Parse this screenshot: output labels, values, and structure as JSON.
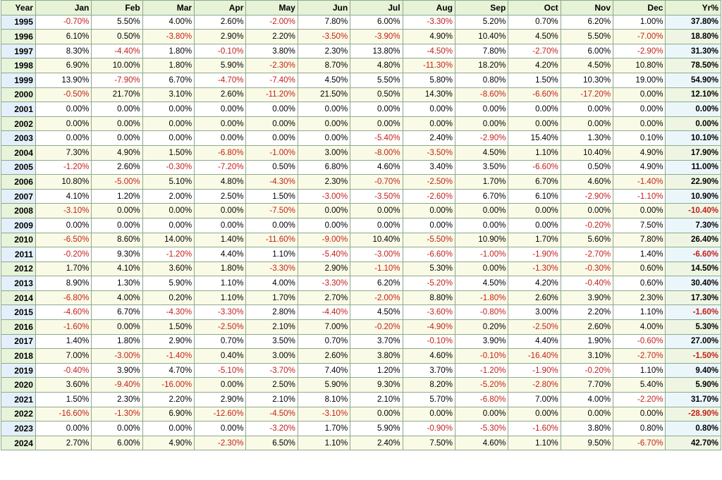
{
  "chart_data": {
    "type": "table",
    "columns": [
      "Year",
      "Jan",
      "Feb",
      "Mar",
      "Apr",
      "May",
      "Jun",
      "Jul",
      "Aug",
      "Sep",
      "Oct",
      "Nov",
      "Dec",
      "Yr%"
    ],
    "rows": [
      [
        "1995",
        "-0.70%",
        "5.50%",
        "4.00%",
        "2.60%",
        "-2.00%",
        "7.80%",
        "6.00%",
        "-3.30%",
        "5.20%",
        "0.70%",
        "6.20%",
        "1.00%",
        "37.80%"
      ],
      [
        "1996",
        "6.10%",
        "0.50%",
        "-3.80%",
        "2.90%",
        "2.20%",
        "-3.50%",
        "-3.90%",
        "4.90%",
        "10.40%",
        "4.50%",
        "5.50%",
        "-7.00%",
        "18.80%"
      ],
      [
        "1997",
        "8.30%",
        "-4.40%",
        "1.80%",
        "-0.10%",
        "3.80%",
        "2.30%",
        "13.80%",
        "-4.50%",
        "7.80%",
        "-2.70%",
        "6.00%",
        "-2.90%",
        "31.30%"
      ],
      [
        "1998",
        "6.90%",
        "10.00%",
        "1.80%",
        "5.90%",
        "-2.30%",
        "8.70%",
        "4.80%",
        "-11.30%",
        "18.20%",
        "4.20%",
        "4.50%",
        "10.80%",
        "78.50%"
      ],
      [
        "1999",
        "13.90%",
        "-7.90%",
        "6.70%",
        "-4.70%",
        "-7.40%",
        "4.50%",
        "5.50%",
        "5.80%",
        "0.80%",
        "1.50%",
        "10.30%",
        "19.00%",
        "54.90%"
      ],
      [
        "2000",
        "-0.50%",
        "21.70%",
        "3.10%",
        "2.60%",
        "-11.20%",
        "21.50%",
        "0.50%",
        "14.30%",
        "-8.60%",
        "-6.60%",
        "-17.20%",
        "0.00%",
        "12.10%"
      ],
      [
        "2001",
        "0.00%",
        "0.00%",
        "0.00%",
        "0.00%",
        "0.00%",
        "0.00%",
        "0.00%",
        "0.00%",
        "0.00%",
        "0.00%",
        "0.00%",
        "0.00%",
        "0.00%"
      ],
      [
        "2002",
        "0.00%",
        "0.00%",
        "0.00%",
        "0.00%",
        "0.00%",
        "0.00%",
        "0.00%",
        "0.00%",
        "0.00%",
        "0.00%",
        "0.00%",
        "0.00%",
        "0.00%"
      ],
      [
        "2003",
        "0.00%",
        "0.00%",
        "0.00%",
        "0.00%",
        "0.00%",
        "0.00%",
        "-5.40%",
        "2.40%",
        "-2.90%",
        "15.40%",
        "1.30%",
        "0.10%",
        "10.10%"
      ],
      [
        "2004",
        "7.30%",
        "4.90%",
        "1.50%",
        "-6.80%",
        "-1.00%",
        "3.00%",
        "-8.00%",
        "-3.50%",
        "4.50%",
        "1.10%",
        "10.40%",
        "4.90%",
        "17.90%"
      ],
      [
        "2005",
        "-1.20%",
        "2.60%",
        "-0.30%",
        "-7.20%",
        "0.50%",
        "6.80%",
        "4.60%",
        "3.40%",
        "3.50%",
        "-6.60%",
        "0.50%",
        "4.90%",
        "11.00%"
      ],
      [
        "2006",
        "10.80%",
        "-5.00%",
        "5.10%",
        "4.80%",
        "-4.30%",
        "2.30%",
        "-0.70%",
        "-2.50%",
        "1.70%",
        "6.70%",
        "4.60%",
        "-1.40%",
        "22.90%"
      ],
      [
        "2007",
        "4.10%",
        "1.20%",
        "2.00%",
        "2.50%",
        "1.50%",
        "-3.00%",
        "-3.50%",
        "-2.60%",
        "6.70%",
        "6.10%",
        "-2.90%",
        "-1.10%",
        "10.90%"
      ],
      [
        "2008",
        "-3.10%",
        "0.00%",
        "0.00%",
        "0.00%",
        "-7.50%",
        "0.00%",
        "0.00%",
        "0.00%",
        "0.00%",
        "0.00%",
        "0.00%",
        "0.00%",
        "-10.40%"
      ],
      [
        "2009",
        "0.00%",
        "0.00%",
        "0.00%",
        "0.00%",
        "0.00%",
        "0.00%",
        "0.00%",
        "0.00%",
        "0.00%",
        "0.00%",
        "-0.20%",
        "7.50%",
        "7.30%"
      ],
      [
        "2010",
        "-6.50%",
        "8.60%",
        "14.00%",
        "1.40%",
        "-11.60%",
        "-9.00%",
        "10.40%",
        "-5.50%",
        "10.90%",
        "1.70%",
        "5.60%",
        "7.80%",
        "26.40%"
      ],
      [
        "2011",
        "-0.20%",
        "9.30%",
        "-1.20%",
        "4.40%",
        "1.10%",
        "-5.40%",
        "-3.00%",
        "-6.60%",
        "-1.00%",
        "-1.90%",
        "-2.70%",
        "1.40%",
        "-6.60%"
      ],
      [
        "2012",
        "1.70%",
        "4.10%",
        "3.60%",
        "1.80%",
        "-3.30%",
        "2.90%",
        "-1.10%",
        "5.30%",
        "0.00%",
        "-1.30%",
        "-0.30%",
        "0.60%",
        "14.50%"
      ],
      [
        "2013",
        "8.90%",
        "1.30%",
        "5.90%",
        "1.10%",
        "4.00%",
        "-3.30%",
        "6.20%",
        "-5.20%",
        "4.50%",
        "4.20%",
        "-0.40%",
        "0.60%",
        "30.40%"
      ],
      [
        "2014",
        "-6.80%",
        "4.00%",
        "0.20%",
        "1.10%",
        "1.70%",
        "2.70%",
        "-2.00%",
        "8.80%",
        "-1.80%",
        "2.60%",
        "3.90%",
        "2.30%",
        "17.30%"
      ],
      [
        "2015",
        "-4.60%",
        "6.70%",
        "-4.30%",
        "-3.30%",
        "2.80%",
        "-4.40%",
        "4.50%",
        "-3.60%",
        "-0.80%",
        "3.00%",
        "2.20%",
        "1.10%",
        "-1.60%"
      ],
      [
        "2016",
        "-1.60%",
        "0.00%",
        "1.50%",
        "-2.50%",
        "2.10%",
        "7.00%",
        "-0.20%",
        "-4.90%",
        "0.20%",
        "-2.50%",
        "2.60%",
        "4.00%",
        "5.30%"
      ],
      [
        "2017",
        "1.40%",
        "1.80%",
        "2.90%",
        "0.70%",
        "3.50%",
        "0.70%",
        "3.70%",
        "-0.10%",
        "3.90%",
        "4.40%",
        "1.90%",
        "-0.60%",
        "27.00%"
      ],
      [
        "2018",
        "7.00%",
        "-3.00%",
        "-1.40%",
        "0.40%",
        "3.00%",
        "2.60%",
        "3.80%",
        "4.60%",
        "-0.10%",
        "-16.40%",
        "3.10%",
        "-2.70%",
        "-1.50%"
      ],
      [
        "2019",
        "-0.40%",
        "3.90%",
        "4.70%",
        "-5.10%",
        "-3.70%",
        "7.40%",
        "1.20%",
        "3.70%",
        "-1.20%",
        "-1.90%",
        "-0.20%",
        "1.10%",
        "9.40%"
      ],
      [
        "2020",
        "3.60%",
        "-9.40%",
        "-16.00%",
        "0.00%",
        "2.50%",
        "5.90%",
        "9.30%",
        "8.20%",
        "-5.20%",
        "-2.80%",
        "7.70%",
        "5.40%",
        "5.90%"
      ],
      [
        "2021",
        "1.50%",
        "2.30%",
        "2.20%",
        "2.90%",
        "2.10%",
        "8.10%",
        "2.10%",
        "5.70%",
        "-6.80%",
        "7.00%",
        "4.00%",
        "-2.20%",
        "31.70%"
      ],
      [
        "2022",
        "-16.60%",
        "-1.30%",
        "6.90%",
        "-12.60%",
        "-4.50%",
        "-3.10%",
        "0.00%",
        "0.00%",
        "0.00%",
        "0.00%",
        "0.00%",
        "0.00%",
        "-28.90%"
      ],
      [
        "2023",
        "0.00%",
        "0.00%",
        "0.00%",
        "0.00%",
        "-3.20%",
        "1.70%",
        "5.90%",
        "-0.90%",
        "-5.30%",
        "-1.60%",
        "3.80%",
        "0.80%",
        "0.80%"
      ],
      [
        "2024",
        "2.70%",
        "6.00%",
        "4.90%",
        "-2.30%",
        "6.50%",
        "1.10%",
        "2.40%",
        "7.50%",
        "4.60%",
        "1.10%",
        "9.50%",
        "-6.70%",
        "42.70%"
      ]
    ],
    "negative_color": "#c4201a",
    "positive_color": "#000000",
    "header_bg": "#e6f3d6",
    "grid_color": "#8fa88f"
  }
}
